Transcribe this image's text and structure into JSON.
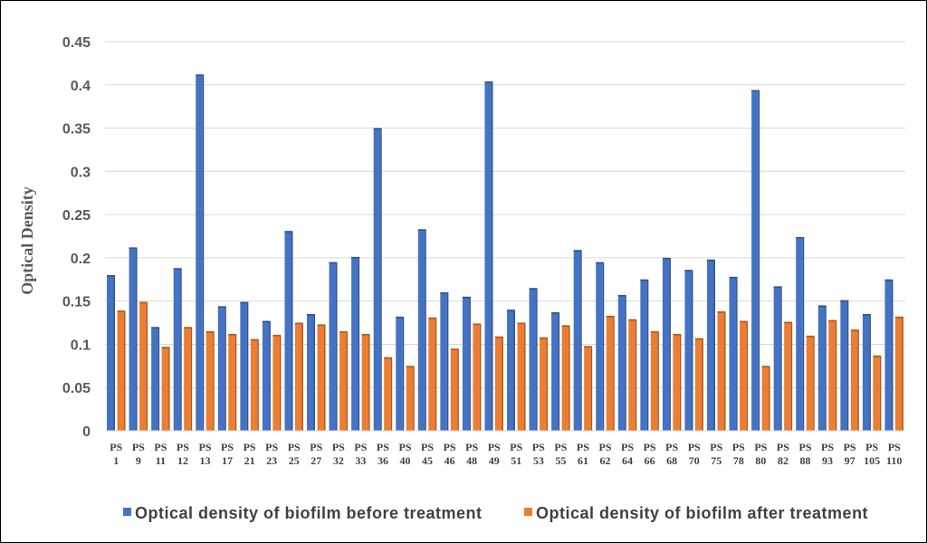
{
  "chart_data": {
    "type": "bar",
    "ylabel": "Optical Density",
    "ylim": [
      0,
      0.45
    ],
    "y_ticks": [
      "0",
      "0.05",
      "0.1",
      "0.15",
      "0.2",
      "0.25",
      "0.3",
      "0.35",
      "0.4",
      "0.45"
    ],
    "grid": true,
    "legend_position": "bottom",
    "categories": [
      [
        "PS",
        "1"
      ],
      [
        "PS",
        "9"
      ],
      [
        "PS",
        "11"
      ],
      [
        "PS",
        "12"
      ],
      [
        "PS",
        "13"
      ],
      [
        "PS",
        "17"
      ],
      [
        "PS",
        "21"
      ],
      [
        "PS",
        "23"
      ],
      [
        "PS",
        "25"
      ],
      [
        "PS",
        "27"
      ],
      [
        "PS",
        "32"
      ],
      [
        "PS",
        "33"
      ],
      [
        "PS",
        "36"
      ],
      [
        "PS",
        "40"
      ],
      [
        "PS",
        "45"
      ],
      [
        "PS",
        "46"
      ],
      [
        "PS",
        "48"
      ],
      [
        "PS",
        "49"
      ],
      [
        "PS",
        "51"
      ],
      [
        "PS",
        "53"
      ],
      [
        "PS",
        "55"
      ],
      [
        "PS",
        "61"
      ],
      [
        "PS",
        "62"
      ],
      [
        "PS",
        "64"
      ],
      [
        "PS",
        "66"
      ],
      [
        "PS",
        "68"
      ],
      [
        "PS",
        "70"
      ],
      [
        "PS",
        "75"
      ],
      [
        "PS",
        "78"
      ],
      [
        "PS",
        "80"
      ],
      [
        "PS",
        "82"
      ],
      [
        "PS",
        "88"
      ],
      [
        "PS",
        "93"
      ],
      [
        "PS",
        "97"
      ],
      [
        "PS",
        "105"
      ],
      [
        "PS",
        "110"
      ]
    ],
    "series": [
      {
        "name": "Optical density of biofilm before treatment",
        "color": "#4472C4",
        "values": [
          0.18,
          0.212,
          0.12,
          0.188,
          0.412,
          0.144,
          0.149,
          0.127,
          0.231,
          0.135,
          0.195,
          0.201,
          0.35,
          0.132,
          0.233,
          0.16,
          0.155,
          0.404,
          0.14,
          0.165,
          0.137,
          0.209,
          0.195,
          0.157,
          0.175,
          0.2,
          0.186,
          0.198,
          0.178,
          0.394,
          0.167,
          0.224,
          0.145,
          0.151,
          0.135,
          0.175
        ]
      },
      {
        "name": "Optical density of biofilm after treatment",
        "color": "#ED7D31",
        "values": [
          0.139,
          0.149,
          0.097,
          0.12,
          0.115,
          0.112,
          0.106,
          0.111,
          0.125,
          0.123,
          0.115,
          0.112,
          0.085,
          0.075,
          0.131,
          0.095,
          0.124,
          0.109,
          0.125,
          0.108,
          0.122,
          0.098,
          0.133,
          0.129,
          0.115,
          0.112,
          0.107,
          0.138,
          0.127,
          0.075,
          0.126,
          0.11,
          0.128,
          0.117,
          0.087,
          0.132
        ]
      }
    ]
  }
}
